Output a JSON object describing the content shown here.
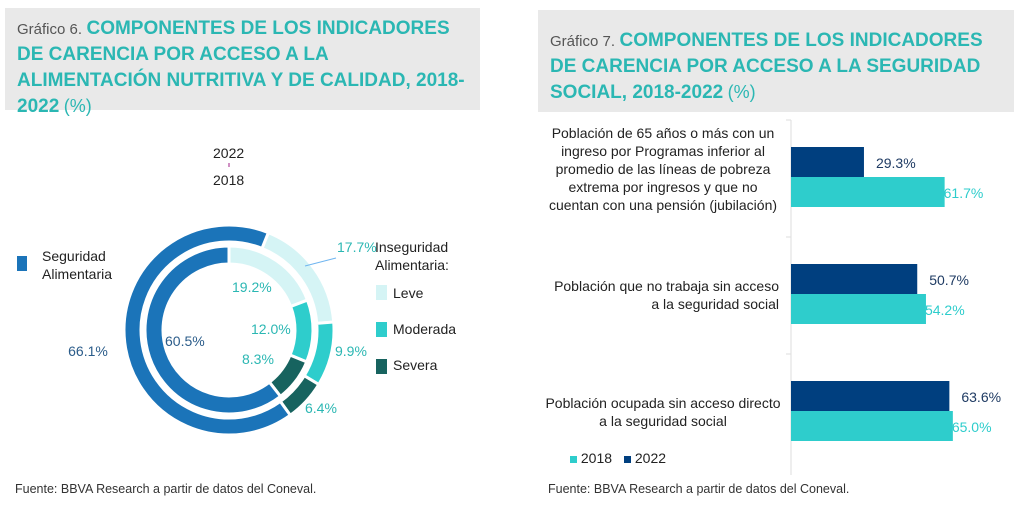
{
  "chart_data": [
    {
      "type": "donut",
      "figure_label": "Gráfico 6.",
      "title": "COMPONENTES DE LOS INDICADORES DE CARENCIA POR ACCESO A LA ALIMENTACIÓN NUTRITIVA Y DE CALIDAD, 2018-2022",
      "unit": "(%)",
      "ring_labels": {
        "outer": "2022",
        "inner": "2018"
      },
      "categories": [
        "Seguridad Alimentaria",
        "Leve",
        "Moderada",
        "Severa"
      ],
      "legend_group": "Inseguridad Alimentaria:",
      "colors": [
        "#1b74b9",
        "#d5f4f5",
        "#2ecdcc",
        "#17635f"
      ],
      "series": [
        {
          "name": "2022",
          "values": [
            66.1,
            17.7,
            9.9,
            6.4
          ],
          "labels": [
            "66.1%",
            "17.7%",
            "9.9%",
            "6.4%"
          ]
        },
        {
          "name": "2018",
          "values": [
            60.5,
            19.2,
            12.0,
            8.3
          ],
          "labels": [
            "60.5%",
            "19.2%",
            "12.0%",
            "8.3%"
          ]
        }
      ],
      "source": "Fuente: BBVA Research a partir de datos del Coneval."
    },
    {
      "type": "bar",
      "orientation": "horizontal",
      "figure_label": "Gráfico 7.",
      "title": "COMPONENTES DE LOS INDICADORES DE CARENCIA POR ACCESO A LA SEGURIDAD SOCIAL, 2018-2022",
      "unit": "(%)",
      "categories": [
        "Población de 65 años o más con un ingreso por Programas inferior al promedio de las líneas de pobreza extrema por ingresos y que no cuentan con una pensión (jubilación)",
        "Población que no trabaja sin acceso a la seguridad social",
        "Población ocupada sin acceso directo a la seguridad social"
      ],
      "series": [
        {
          "name": "2022",
          "color": "#003f7f",
          "values": [
            29.3,
            50.7,
            63.6
          ],
          "labels": [
            "29.3%",
            "50.7%",
            "63.6%"
          ]
        },
        {
          "name": "2018",
          "color": "#2ecdcc",
          "values": [
            61.7,
            54.2,
            65.0
          ],
          "labels": [
            "61.7%",
            "54.2%",
            "65.0%"
          ]
        }
      ],
      "legend": [
        "2018",
        "2022"
      ],
      "legend_placement": "bottom-left",
      "source": "Fuente: BBVA Research a partir de datos del Coneval."
    }
  ]
}
